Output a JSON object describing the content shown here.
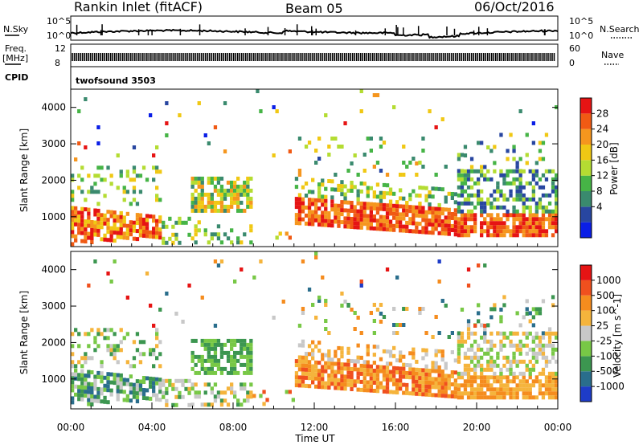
{
  "header": {
    "station": "Rankin Inlet (fitACF)",
    "beam": "Beam 05",
    "date": "06/Oct/2016"
  },
  "top_panels": {
    "nsky_label": "N.Sky",
    "nsky_ticks": [
      "10^5",
      "10^0"
    ],
    "nsearch_label": "N.Search",
    "nsearch_ticks": [
      "10^5",
      "10^0"
    ],
    "freq_label": "Freq.",
    "freq_unit": "[MHz]",
    "freq_ticks": [
      "12",
      "8"
    ],
    "nave_label": "Nave",
    "nave_ticks": [
      "60",
      "0"
    ],
    "cpid_label": "CPID",
    "cpid_value": "twofsound 3503"
  },
  "chart_data": [
    {
      "type": "heatmap",
      "name": "power",
      "ylabel": "Slant Range [km]",
      "yticks": [
        "4000",
        "3000",
        "2000",
        "1000"
      ],
      "ylim": [
        180,
        4500
      ],
      "xlim_hours": [
        0,
        24
      ],
      "xticks": [
        "00:00",
        "04:00",
        "08:00",
        "12:00",
        "16:00",
        "20:00",
        "00:00"
      ],
      "colorbar_label": "Power [dB]",
      "colorbar_ticks": [
        "28",
        "24",
        "20",
        "16",
        "12",
        "8",
        "4"
      ],
      "colors": [
        "#0a1ee6",
        "#2846a0",
        "#3a8a6e",
        "#46b446",
        "#b4dc32",
        "#f0c814",
        "#f5961e",
        "#f05a14",
        "#e61414"
      ]
    },
    {
      "type": "heatmap",
      "name": "velocity",
      "ylabel": "Slant Range [km]",
      "yticks": [
        "4000",
        "3000",
        "2000",
        "1000"
      ],
      "ylim": [
        180,
        4500
      ],
      "xlim_hours": [
        0,
        24
      ],
      "xticks": [
        "00:00",
        "04:00",
        "08:00",
        "12:00",
        "16:00",
        "20:00",
        "00:00"
      ],
      "xlabel": "Time UT",
      "colorbar_label": "Velocity [m s^-1]",
      "colorbar_ticks": [
        "1000",
        "500",
        "100",
        "25",
        "-25",
        "-100",
        "-500",
        "-1000"
      ],
      "colors": [
        "#1e3cc8",
        "#2a6e8c",
        "#3c9650",
        "#78c846",
        "#c8c8c8",
        "#f5b43c",
        "#f58c1e",
        "#f0501e",
        "#e61414"
      ]
    }
  ]
}
